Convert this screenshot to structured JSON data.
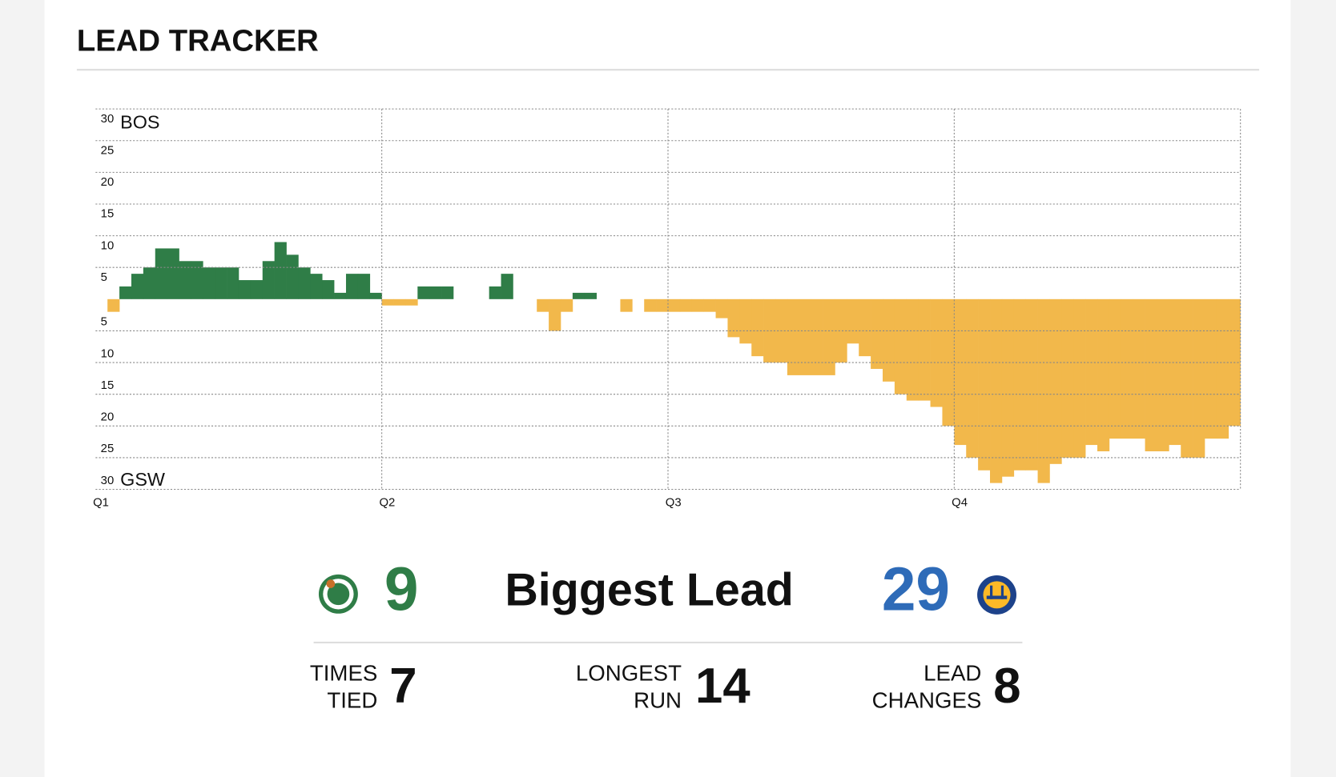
{
  "header": {
    "title": "LEAD TRACKER"
  },
  "chart_data": {
    "type": "bar",
    "positive_label": "BOS",
    "negative_label": "GSW",
    "positive_color": "#2f7d47",
    "negative_color": "#f2b84b",
    "quarters": [
      "Q1",
      "Q2",
      "Q3",
      "Q4"
    ],
    "values": [
      0,
      -2,
      2,
      4,
      5,
      8,
      8,
      6,
      6,
      5,
      5,
      5,
      3,
      3,
      6,
      9,
      7,
      5,
      4,
      3,
      1,
      4,
      4,
      1,
      -1,
      -1,
      -1,
      2,
      2,
      2,
      0,
      0,
      0,
      2,
      4,
      0,
      0,
      -2,
      -5,
      -2,
      1,
      1,
      0,
      0,
      -2,
      0,
      -2,
      -2,
      -2,
      -2,
      -2,
      -2,
      -3,
      -6,
      -7,
      -9,
      -10,
      -10,
      -12,
      -12,
      -12,
      -12,
      -10,
      -7,
      -9,
      -11,
      -13,
      -15,
      -16,
      -16,
      -17,
      -20,
      -23,
      -25,
      -27,
      -29,
      -28,
      -27,
      -27,
      -29,
      -26,
      -25,
      -25,
      -23,
      -24,
      -22,
      -22,
      -22,
      -24,
      -24,
      -23,
      -25,
      -25,
      -22,
      -22,
      -20
    ],
    "ylim": [
      -30,
      30
    ],
    "yticks": [
      30,
      25,
      20,
      15,
      10,
      5,
      {
        "value": -5,
        "label": "5"
      },
      {
        "value": -10,
        "label": "10"
      },
      {
        "value": -15,
        "label": "15"
      },
      {
        "value": -20,
        "label": "20"
      },
      {
        "value": -25,
        "label": "25"
      },
      {
        "value": -30,
        "label": "30"
      }
    ],
    "grid": true
  },
  "stats": {
    "biggest_lead": {
      "label": "Biggest Lead",
      "home": 9,
      "away": 29
    },
    "times_tied": {
      "label": [
        "TIMES",
        "TIED"
      ],
      "value": 7
    },
    "longest_run": {
      "label": [
        "LONGEST",
        "RUN"
      ],
      "value": 14
    },
    "lead_changes": {
      "label": [
        "LEAD",
        "CHANGES"
      ],
      "value": 8
    }
  }
}
